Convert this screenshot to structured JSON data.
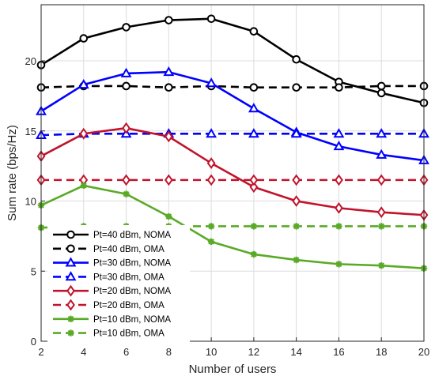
{
  "chart_data": {
    "type": "line",
    "title": "",
    "xlabel": "Number of users",
    "ylabel": "Sum rate (bps/Hz)",
    "xlim": [
      2,
      20
    ],
    "ylim": [
      0,
      24
    ],
    "xticks": [
      2,
      4,
      6,
      8,
      10,
      12,
      14,
      16,
      18,
      20
    ],
    "yticks": [
      0,
      5,
      10,
      15,
      20
    ],
    "grid": true,
    "legend_position": "bottom-left",
    "x": [
      2,
      4,
      6,
      8,
      10,
      12,
      14,
      16,
      18,
      20
    ],
    "series": [
      {
        "name": "Pt=40 dBm, NOMA",
        "color": "#000000",
        "dash": "solid",
        "marker": "circle",
        "values": [
          19.7,
          21.6,
          22.4,
          22.9,
          23.0,
          22.1,
          20.1,
          18.5,
          17.7,
          17.0
        ]
      },
      {
        "name": "Pt=40 dBm, OMA",
        "color": "#000000",
        "dash": "dashed",
        "marker": "circle",
        "values": [
          18.1,
          18.2,
          18.2,
          18.1,
          18.2,
          18.1,
          18.1,
          18.1,
          18.2,
          18.2
        ]
      },
      {
        "name": "Pt=30 dBm, NOMA",
        "color": "#0000ff",
        "dash": "solid",
        "marker": "triangle",
        "values": [
          16.4,
          18.3,
          19.1,
          19.2,
          18.4,
          16.6,
          14.9,
          13.9,
          13.3,
          12.9
        ]
      },
      {
        "name": "Pt=30 dBm, OMA",
        "color": "#0000ff",
        "dash": "dashed",
        "marker": "triangle",
        "values": [
          14.7,
          14.8,
          14.8,
          14.8,
          14.8,
          14.8,
          14.8,
          14.8,
          14.8,
          14.8
        ]
      },
      {
        "name": "Pt=20 dBm, NOMA",
        "color": "#c0142c",
        "dash": "solid",
        "marker": "diamond",
        "values": [
          13.2,
          14.8,
          15.2,
          14.6,
          12.7,
          11.0,
          10.0,
          9.5,
          9.2,
          9.0
        ]
      },
      {
        "name": "Pt=20 dBm, OMA",
        "color": "#c0142c",
        "dash": "dashed",
        "marker": "diamond",
        "values": [
          11.5,
          11.5,
          11.5,
          11.5,
          11.5,
          11.5,
          11.5,
          11.5,
          11.5,
          11.5
        ]
      },
      {
        "name": "Pt=10 dBm, NOMA",
        "color": "#5aaa28",
        "dash": "solid",
        "marker": "star",
        "values": [
          9.7,
          11.1,
          10.5,
          8.9,
          7.1,
          6.2,
          5.8,
          5.5,
          5.4,
          5.2
        ]
      },
      {
        "name": "Pt=10 dBm, OMA",
        "color": "#5aaa28",
        "dash": "dashed",
        "marker": "star",
        "values": [
          8.1,
          8.2,
          8.2,
          8.2,
          8.2,
          8.2,
          8.2,
          8.2,
          8.2,
          8.2
        ]
      }
    ]
  }
}
